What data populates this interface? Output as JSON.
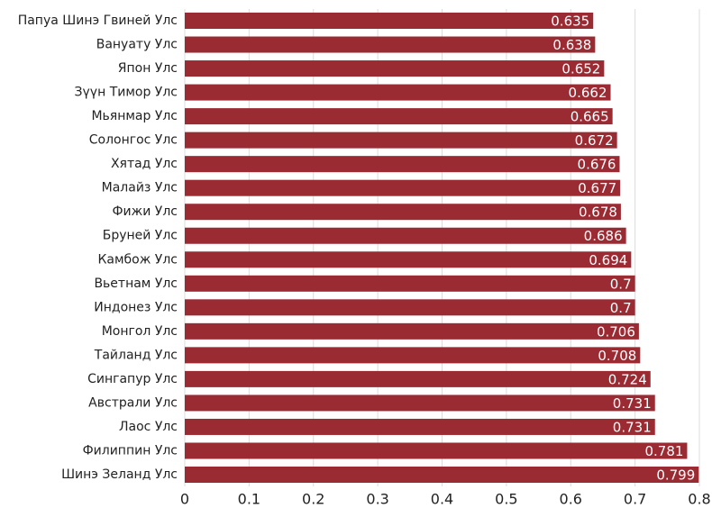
{
  "chart_data": {
    "type": "barh",
    "categories": [
      "Папуа Шинэ Гвиней Улс",
      "Вануату Улс",
      "Япон Улс",
      "Зүүн Тимор Улс",
      "Мьянмар Улс",
      "Солонгос Улс",
      "Хятад Улс",
      "Малайз Улс",
      "Фижи Улс",
      "Бруней Улс",
      "Камбож Улс",
      "Вьетнам Улс",
      "Индонез Улс",
      "Монгол Улс",
      "Тайланд Улс",
      "Сингапур Улс",
      "Австрали Улс",
      "Лаос Улс",
      "Филиппин Улс",
      "Шинэ Зеланд Улс"
    ],
    "values": [
      0.635,
      0.638,
      0.652,
      0.662,
      0.665,
      0.672,
      0.676,
      0.677,
      0.678,
      0.686,
      0.694,
      0.7,
      0.7,
      0.706,
      0.708,
      0.724,
      0.731,
      0.731,
      0.781,
      0.799
    ],
    "color": "#9b2b33",
    "xlim": [
      0,
      0.8
    ],
    "xticks": [
      0,
      0.1,
      0.2,
      0.3,
      0.4,
      0.5,
      0.6,
      0.7,
      0.8
    ],
    "grid": true
  }
}
